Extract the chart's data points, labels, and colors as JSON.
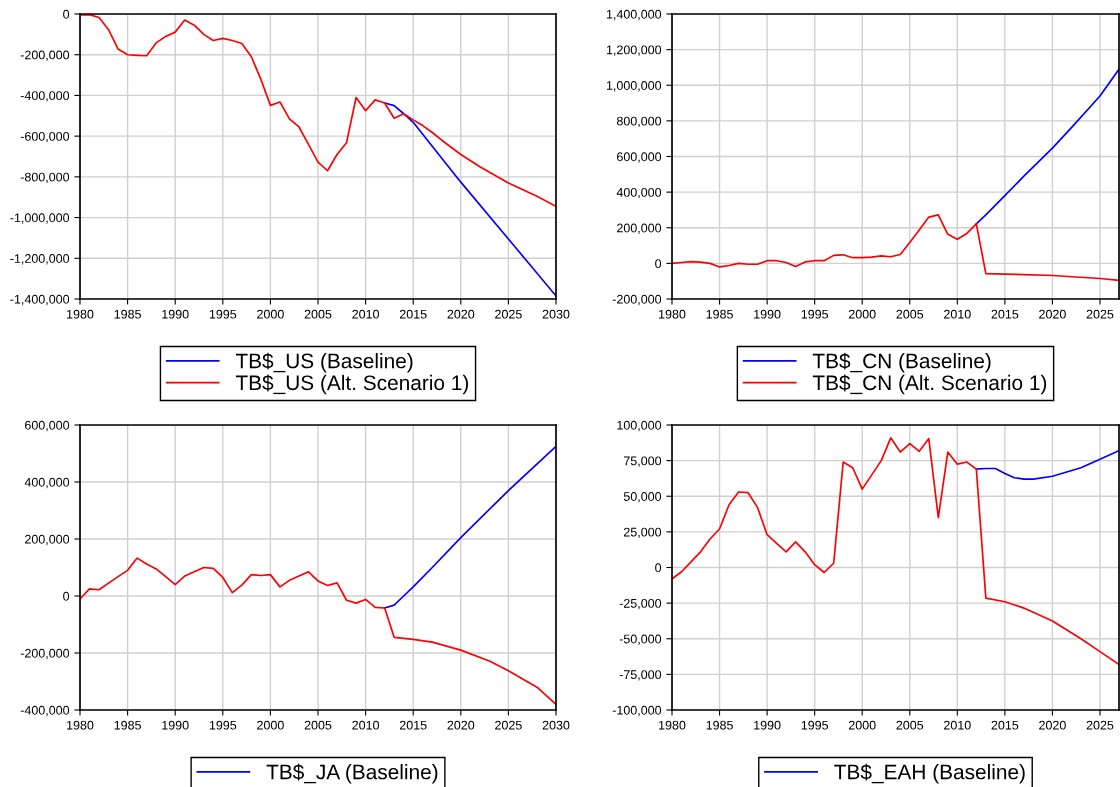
{
  "chart_data": [
    {
      "type": "line",
      "grid": true,
      "legend": "bottom",
      "xlim": [
        1980,
        2030
      ],
      "xticks": [
        1980,
        1985,
        1990,
        1995,
        2000,
        2005,
        2010,
        2015,
        2020,
        2025,
        2030
      ],
      "ylim": [
        -1400000,
        0
      ],
      "yticks": [
        {
          "value": -1400000,
          "label": "-1,400,000"
        },
        {
          "value": -1200000,
          "label": "-1,200,000"
        },
        {
          "value": -1000000,
          "label": "-1,000,000"
        },
        {
          "value": -800000,
          "label": "-800,000"
        },
        {
          "value": -600000,
          "label": "-600,000"
        },
        {
          "value": -400000,
          "label": "-400,000"
        },
        {
          "value": -200000,
          "label": "-200,000"
        },
        {
          "value": 0,
          "label": "0"
        }
      ],
      "series": [
        {
          "name": "TB$_US (Baseline)",
          "color": "#0000ff",
          "x": [
            2012,
            2013,
            2014,
            2015,
            2020,
            2025,
            2030
          ],
          "values": [
            -437000,
            -450000,
            -490000,
            -532000,
            -826000,
            -1105000,
            -1385000
          ]
        },
        {
          "name": "TB$_US (Alt. Scenario 1)",
          "color": "#ff0000",
          "x": [
            1980,
            1981,
            1982,
            1983,
            1984,
            1985,
            1986,
            1987,
            1988,
            1989,
            1990,
            1991,
            1992,
            1993,
            1994,
            1995,
            1996,
            1997,
            1998,
            1999,
            2000,
            2001,
            2002,
            2003,
            2004,
            2005,
            2006,
            2007,
            2008,
            2009,
            2010,
            2011,
            2012,
            2013,
            2014,
            2015,
            2016,
            2017,
            2018,
            2020,
            2022,
            2025,
            2028,
            2030
          ],
          "values": [
            -5000,
            -3000,
            -17000,
            -77000,
            -172000,
            -200000,
            -203000,
            -205000,
            -142000,
            -110000,
            -89000,
            -30000,
            -55000,
            -100000,
            -130000,
            -120000,
            -130000,
            -145000,
            -210000,
            -321000,
            -449000,
            -432000,
            -515000,
            -555000,
            -640000,
            -728000,
            -770000,
            -690000,
            -632000,
            -410000,
            -475000,
            -422000,
            -437000,
            -512000,
            -490000,
            -520000,
            -548000,
            -582000,
            -620000,
            -690000,
            -750000,
            -830000,
            -895000,
            -945000
          ]
        }
      ]
    },
    {
      "type": "line",
      "grid": true,
      "legend": "bottom",
      "xlim": [
        1980,
        2027
      ],
      "xticks": [
        1980,
        1985,
        1990,
        1995,
        2000,
        2005,
        2010,
        2015,
        2020,
        2025
      ],
      "ylim": [
        -200000,
        1400000
      ],
      "yticks": [
        {
          "value": -200000,
          "label": "-200,000"
        },
        {
          "value": 0,
          "label": "0"
        },
        {
          "value": 200000,
          "label": "200,000"
        },
        {
          "value": 400000,
          "label": "400,000"
        },
        {
          "value": 600000,
          "label": "600,000"
        },
        {
          "value": 800000,
          "label": "800,000"
        },
        {
          "value": 1000000,
          "label": "1,000,000"
        },
        {
          "value": 1200000,
          "label": "1,200,000"
        },
        {
          "value": 1400000,
          "label": "1,400,000"
        }
      ],
      "series": [
        {
          "name": "TB$_CN (Baseline)",
          "color": "#0000ff",
          "x": [
            2012,
            2013,
            2015,
            2017,
            2020,
            2022,
            2025,
            2027
          ],
          "values": [
            222000,
            272000,
            380000,
            490000,
            647000,
            762000,
            940000,
            1090000
          ]
        },
        {
          "name": "TB$_CN (Alt. Scenario 1)",
          "color": "#ff0000",
          "x": [
            1980,
            1981,
            1982,
            1983,
            1984,
            1985,
            1986,
            1987,
            1988,
            1989,
            1990,
            1991,
            1992,
            1993,
            1994,
            1995,
            1996,
            1997,
            1998,
            1999,
            2000,
            2001,
            2002,
            2003,
            2004,
            2005,
            2006,
            2007,
            2008,
            2009,
            2010,
            2011,
            2012,
            2013,
            2015,
            2020,
            2025,
            2027
          ],
          "values": [
            0,
            5000,
            10000,
            7000,
            0,
            -20000,
            -12000,
            0,
            -5000,
            -5000,
            15000,
            15000,
            5000,
            -18000,
            8000,
            15000,
            15000,
            45000,
            48000,
            32000,
            32000,
            35000,
            42000,
            37000,
            50000,
            117000,
            188000,
            260000,
            272000,
            163000,
            135000,
            168000,
            222000,
            -58000,
            -60000,
            -68000,
            -85000,
            -95000
          ]
        }
      ]
    },
    {
      "type": "line",
      "grid": true,
      "legend": "bottom",
      "xlim": [
        1980,
        2030
      ],
      "xticks": [
        1980,
        1985,
        1990,
        1995,
        2000,
        2005,
        2010,
        2015,
        2020,
        2025,
        2030
      ],
      "ylim": [
        -400000,
        600000
      ],
      "yticks": [
        {
          "value": -400000,
          "label": "-400,000"
        },
        {
          "value": -200000,
          "label": "-200,000"
        },
        {
          "value": 0,
          "label": "0"
        },
        {
          "value": 200000,
          "label": "200,000"
        },
        {
          "value": 400000,
          "label": "400,000"
        },
        {
          "value": 600000,
          "label": "600,000"
        }
      ],
      "series": [
        {
          "name": "TB$_JA (Baseline)",
          "color": "#0000ff",
          "x": [
            2012,
            2013,
            2014,
            2015,
            2017,
            2020,
            2025,
            2030
          ],
          "values": [
            -42000,
            -32000,
            0,
            32000,
            100000,
            205000,
            370000,
            525000
          ]
        },
        {
          "color": "#ff0000",
          "x": [
            1980,
            1981,
            1982,
            1983,
            1984,
            1985,
            1986,
            1987,
            1988,
            1989,
            1990,
            1991,
            1992,
            1993,
            1994,
            1995,
            1996,
            1997,
            1998,
            1999,
            2000,
            2001,
            2002,
            2003,
            2004,
            2005,
            2006,
            2007,
            2008,
            2009,
            2010,
            2011,
            2012,
            2013,
            2015,
            2017,
            2020,
            2023,
            2025,
            2028,
            2030
          ],
          "values": [
            -10000,
            25000,
            22000,
            45000,
            68000,
            90000,
            133000,
            112000,
            95000,
            68000,
            40000,
            70000,
            85000,
            100000,
            97000,
            65000,
            12000,
            38000,
            75000,
            72000,
            75000,
            32000,
            55000,
            70000,
            85000,
            53000,
            37000,
            46000,
            -15000,
            -25000,
            -12000,
            -40000,
            -42000,
            -145000,
            -152000,
            -162000,
            -190000,
            -228000,
            -262000,
            -320000,
            -380000
          ]
        }
      ]
    },
    {
      "type": "line",
      "grid": true,
      "legend": "bottom",
      "xlim": [
        1980,
        2027
      ],
      "xticks": [
        1980,
        1985,
        1990,
        1995,
        2000,
        2005,
        2010,
        2015,
        2020,
        2025
      ],
      "ylim": [
        -100000,
        100000
      ],
      "yticks": [
        {
          "value": -100000,
          "label": "-100,000"
        },
        {
          "value": -75000,
          "label": "-75,000"
        },
        {
          "value": -50000,
          "label": "-50,000"
        },
        {
          "value": -25000,
          "label": "-25,000"
        },
        {
          "value": 0,
          "label": "0"
        },
        {
          "value": 25000,
          "label": "25,000"
        },
        {
          "value": 50000,
          "label": "50,000"
        },
        {
          "value": 75000,
          "label": "75,000"
        },
        {
          "value": 100000,
          "label": "100,000"
        }
      ],
      "series": [
        {
          "name": "TB$_EAH (Baseline)",
          "color": "#0000ff",
          "x": [
            2012,
            2013,
            2014,
            2015,
            2016,
            2017,
            2018,
            2020,
            2023,
            2025,
            2027
          ],
          "values": [
            69000,
            69500,
            69500,
            66000,
            63000,
            62000,
            62000,
            64000,
            70000,
            76000,
            82000
          ]
        },
        {
          "color": "#ff0000",
          "x": [
            1980,
            1981,
            1982,
            1983,
            1984,
            1985,
            1986,
            1987,
            1988,
            1989,
            1990,
            1991,
            1992,
            1993,
            1994,
            1995,
            1996,
            1997,
            1998,
            1999,
            2000,
            2001,
            2002,
            2003,
            2004,
            2005,
            2006,
            2007,
            2008,
            2009,
            2010,
            2011,
            2012,
            2013,
            2015,
            2017,
            2020,
            2023,
            2025,
            2027
          ],
          "values": [
            -8000,
            -3000,
            4000,
            11000,
            20000,
            27000,
            44000,
            53000,
            52500,
            42000,
            23000,
            17000,
            11000,
            18000,
            11000,
            2000,
            -3500,
            3000,
            74000,
            70000,
            55000,
            65000,
            75000,
            91000,
            81000,
            87000,
            81500,
            90500,
            35000,
            81000,
            72500,
            74000,
            69000,
            -21500,
            -24000,
            -28500,
            -37500,
            -50000,
            -59000,
            -68000
          ]
        }
      ]
    }
  ]
}
